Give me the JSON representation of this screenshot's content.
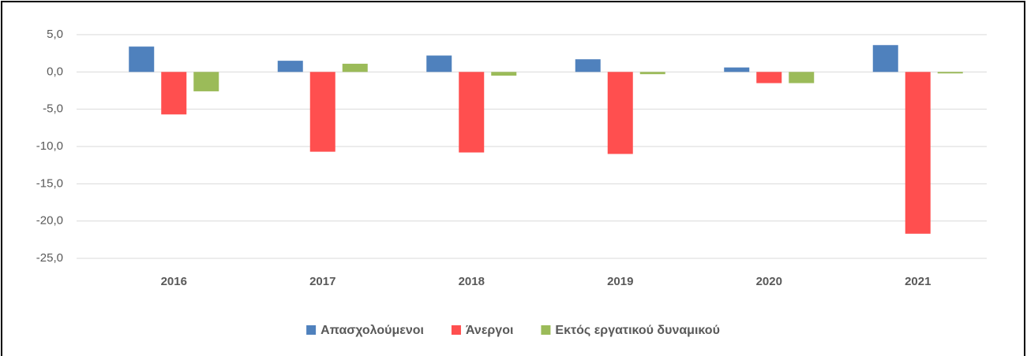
{
  "chart_data": {
    "type": "bar",
    "categories": [
      "2016",
      "2017",
      "2018",
      "2019",
      "2020",
      "2021"
    ],
    "series": [
      {
        "name": "Απασχολούμενοι",
        "color": "#4f81bd",
        "values": [
          3.4,
          1.5,
          2.2,
          1.7,
          0.6,
          3.6
        ]
      },
      {
        "name": "Άνεργοι",
        "color": "#ff4f4f",
        "values": [
          -5.7,
          -10.7,
          -10.8,
          -11.0,
          -1.5,
          -21.7
        ]
      },
      {
        "name": "Εκτός εργατικού δυναμικού",
        "color": "#9bbb59",
        "values": [
          -2.6,
          1.1,
          -0.5,
          -0.3,
          -1.5,
          -0.2
        ]
      }
    ],
    "ylim": [
      -25,
      5
    ],
    "yticks": [
      {
        "value": 5,
        "label": "5,0"
      },
      {
        "value": 0,
        "label": "0,0"
      },
      {
        "value": -5,
        "label": "-5,0"
      },
      {
        "value": -10,
        "label": "-10,0"
      },
      {
        "value": -15,
        "label": "-15,0"
      },
      {
        "value": -20,
        "label": "-20,0"
      },
      {
        "value": -25,
        "label": "-25,0"
      }
    ],
    "grid": true,
    "legend": "bottom"
  }
}
